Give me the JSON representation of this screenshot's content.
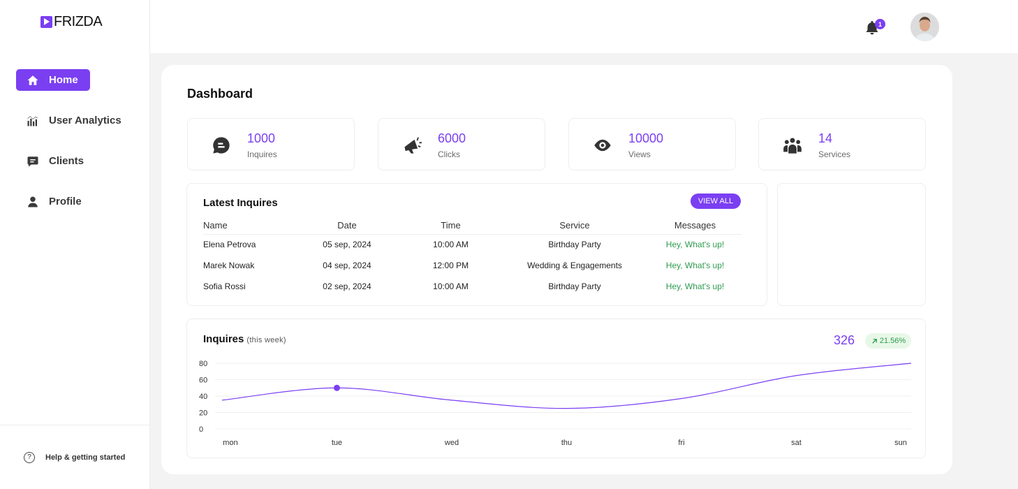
{
  "app": {
    "logo_text": "FRIZDA"
  },
  "sidebar": {
    "items": [
      {
        "label": "Home",
        "icon": "home-icon",
        "active": true
      },
      {
        "label": "User Analytics",
        "icon": "analytics-icon"
      },
      {
        "label": "Clients",
        "icon": "chat-icon"
      },
      {
        "label": "Profile",
        "icon": "user-icon"
      }
    ],
    "help_label": "Help & getting started"
  },
  "topbar": {
    "notification_count": "1"
  },
  "page": {
    "title": "Dashboard"
  },
  "stats": [
    {
      "value": "1000",
      "label": "Inquires",
      "icon": "message-icon"
    },
    {
      "value": "6000",
      "label": "Clicks",
      "icon": "megaphone-icon"
    },
    {
      "value": "10000",
      "label": "Views",
      "icon": "eye-icon"
    },
    {
      "value": "14",
      "label": "Services",
      "icon": "group-icon"
    }
  ],
  "inquiries": {
    "title": "Latest Inquires",
    "view_all_label": "VIEW ALL",
    "columns": [
      "Name",
      "Date",
      "Time",
      "Service",
      "Messages"
    ],
    "rows": [
      [
        "Elena Petrova",
        "05 sep, 2024",
        "10:00 AM",
        "Birthday Party",
        "Hey, What's up!"
      ],
      [
        "Marek Nowak",
        "04 sep, 2024",
        "12:00 PM",
        "Wedding & Engagements",
        "Hey, What's up!"
      ],
      [
        "Sofia Rossi",
        "02 sep, 2024",
        "10:00 AM",
        "Birthday Party",
        "Hey, What's up!"
      ]
    ]
  },
  "inquiries_chart": {
    "title": "Inquires",
    "subtitle": "(this week)",
    "total": "326",
    "change": "21.56%",
    "accent": "#7b3ff2"
  },
  "chart_data": {
    "type": "line",
    "categories": [
      "mon",
      "tue",
      "wed",
      "thu",
      "fri",
      "sat",
      "sun"
    ],
    "yticks": [
      80,
      60,
      40,
      20,
      0
    ],
    "ylim": [
      0,
      80
    ],
    "highlight_index": 1,
    "series": [
      {
        "values": [
          35,
          50,
          35,
          25,
          37,
          65,
          80
        ]
      }
    ]
  }
}
